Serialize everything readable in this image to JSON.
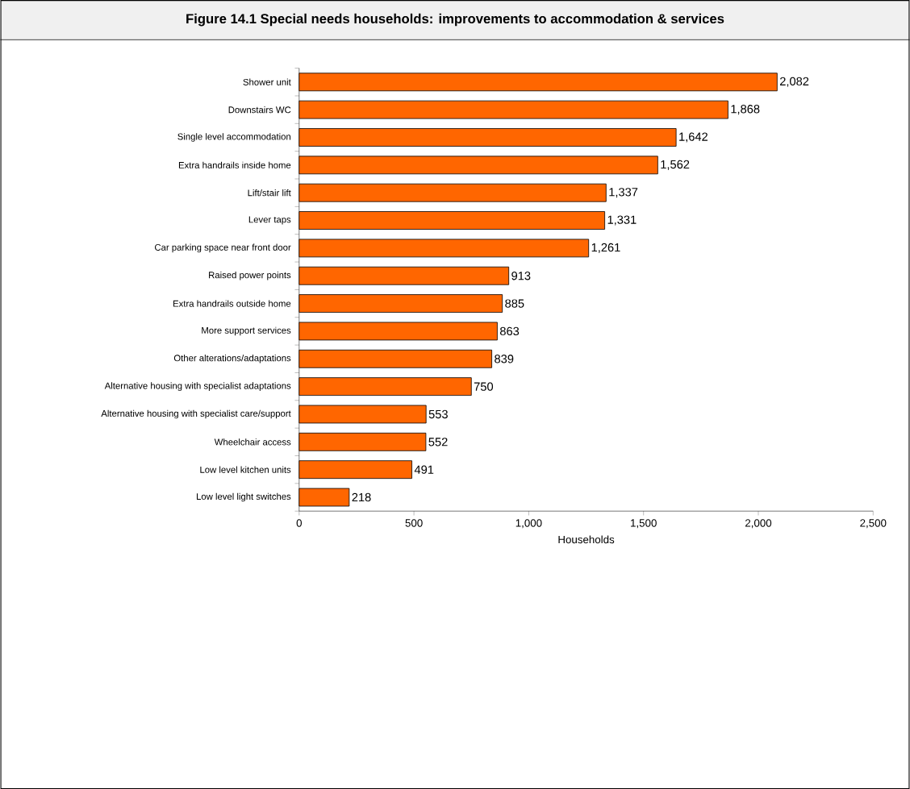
{
  "chart_data": {
    "type": "bar",
    "orientation": "horizontal",
    "title": "Figure 14.1 Special needs households: improvements to accommodation & services",
    "xlabel": "Households",
    "categories": [
      "Shower unit",
      "Downstairs WC",
      "Single level accommodation",
      "Extra handrails inside home",
      "Lift/stair lift",
      "Lever taps",
      "Car parking space near front door",
      "Raised power points",
      "Extra handrails outside home",
      "More support services",
      "Other alterations/adaptations",
      "Alternative housing with specialist adaptations",
      "Alternative housing with specialist care/support",
      "Wheelchair access",
      "Low level kitchen units",
      "Low level light switches"
    ],
    "values": [
      2082,
      1868,
      1642,
      1562,
      1337,
      1331,
      1261,
      913,
      885,
      863,
      839,
      750,
      553,
      552,
      491,
      218
    ],
    "value_labels": [
      "2,082",
      "1,868",
      "1,642",
      "1,562",
      "1,337",
      "1,331",
      "1,261",
      "913",
      "885",
      "863",
      "839",
      "750",
      "553",
      "552",
      "491",
      "218"
    ],
    "color": "#ff6600",
    "xlim": [
      0,
      2500
    ],
    "xticks": [
      0,
      {
        "value": 500,
        "label": "500"
      },
      {
        "value": 1000,
        "label": "1,000"
      },
      {
        "value": 1500,
        "label": "1,500"
      },
      {
        "value": 2000,
        "label": "2,000"
      },
      {
        "value": 2500,
        "label": "2,500"
      }
    ]
  }
}
